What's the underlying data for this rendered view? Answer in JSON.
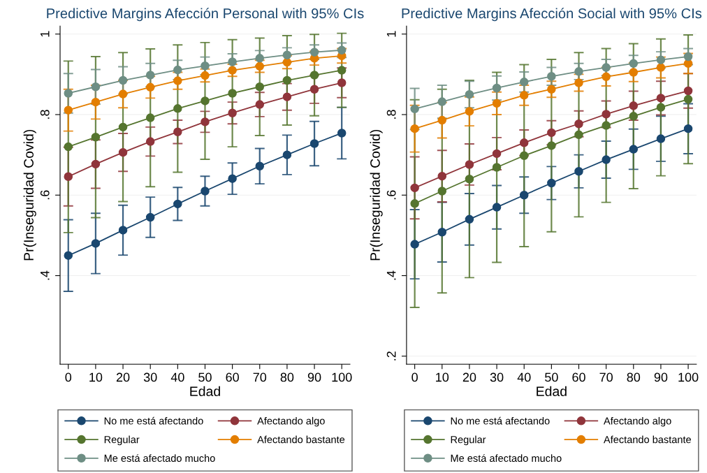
{
  "chart_data": [
    {
      "type": "line",
      "title": "Predictive Margins Afección Personal with 95% CIs",
      "xlabel": "Edad",
      "ylabel": "Pr(Inseguridad Covid)",
      "x": [
        0,
        10,
        20,
        30,
        40,
        50,
        60,
        70,
        80,
        90,
        100
      ],
      "xlim": [
        -3,
        103
      ],
      "xticks": [
        0,
        10,
        20,
        30,
        40,
        50,
        60,
        70,
        80,
        90,
        100
      ],
      "ylim": [
        0.18,
        1.02
      ],
      "yticks": [
        {
          "value": 0.4,
          "label": ".4"
        },
        {
          "value": 0.6,
          "label": ".6"
        },
        {
          "value": 0.8,
          "label": ".8"
        },
        {
          "value": 1,
          "label": "1"
        }
      ],
      "grid": "y",
      "legend": "bottom",
      "marker": "circle",
      "line_style": "solid",
      "series": [
        {
          "name": "No me está afectando",
          "color": "#1a476f",
          "values": [
            0.45,
            0.48,
            0.513,
            0.545,
            0.578,
            0.61,
            0.641,
            0.672,
            0.7,
            0.728,
            0.754
          ],
          "errors": [
            0.089,
            0.075,
            0.062,
            0.05,
            0.041,
            0.037,
            0.039,
            0.044,
            0.049,
            0.055,
            0.064
          ]
        },
        {
          "name": "Afectando algo",
          "color": "#90353b",
          "values": [
            0.646,
            0.677,
            0.706,
            0.733,
            0.757,
            0.782,
            0.804,
            0.825,
            0.844,
            0.863,
            0.879
          ],
          "errors": [
            0.073,
            0.06,
            0.047,
            0.036,
            0.029,
            0.026,
            0.027,
            0.03,
            0.033,
            0.035,
            0.037
          ]
        },
        {
          "name": "Regular",
          "color": "#55752f",
          "values": [
            0.72,
            0.744,
            0.769,
            0.792,
            0.815,
            0.834,
            0.853,
            0.869,
            0.885,
            0.898,
            0.91
          ],
          "errors": [
            0.213,
            0.2,
            0.185,
            0.171,
            0.158,
            0.145,
            0.133,
            0.121,
            0.111,
            0.101,
            0.092
          ]
        },
        {
          "name": "Afectando bastante",
          "color": "#e37e00",
          "values": [
            0.811,
            0.831,
            0.851,
            0.868,
            0.884,
            0.897,
            0.91,
            0.92,
            0.93,
            0.94,
            0.946
          ],
          "errors": [
            0.052,
            0.042,
            0.034,
            0.027,
            0.021,
            0.016,
            0.015,
            0.015,
            0.016,
            0.017,
            0.018
          ]
        },
        {
          "name": "Me está afectado mucho",
          "color": "#6e8e84",
          "values": [
            0.853,
            0.869,
            0.885,
            0.898,
            0.911,
            0.921,
            0.931,
            0.94,
            0.948,
            0.955,
            0.96
          ],
          "errors": [
            0.049,
            0.043,
            0.034,
            0.029,
            0.024,
            0.022,
            0.02,
            0.019,
            0.018,
            0.018,
            0.018
          ]
        }
      ]
    },
    {
      "type": "line",
      "title": "Predictive Margins Afección Social with 95% CIs",
      "xlabel": "Edad",
      "ylabel": "Pr(Inseguridad Covid)",
      "x": [
        0,
        10,
        20,
        30,
        40,
        50,
        60,
        70,
        80,
        90,
        100
      ],
      "xlim": [
        -3,
        103
      ],
      "xticks": [
        0,
        10,
        20,
        30,
        40,
        50,
        60,
        70,
        80,
        90,
        100
      ],
      "ylim": [
        0.18,
        1.02
      ],
      "yticks": [
        {
          "value": 0.2,
          "label": ".2"
        },
        {
          "value": 0.4,
          "label": ".4"
        },
        {
          "value": 0.6,
          "label": ".6"
        },
        {
          "value": 0.8,
          "label": ".8"
        },
        {
          "value": 1,
          "label": "1"
        }
      ],
      "grid": "y",
      "legend": "bottom",
      "marker": "circle",
      "line_style": "solid",
      "series": [
        {
          "name": "No me está afectando",
          "color": "#1a476f",
          "values": [
            0.478,
            0.508,
            0.54,
            0.57,
            0.6,
            0.63,
            0.659,
            0.688,
            0.714,
            0.74,
            0.765
          ],
          "errors": [
            0.086,
            0.074,
            0.064,
            0.054,
            0.045,
            0.041,
            0.041,
            0.046,
            0.05,
            0.056,
            0.062
          ]
        },
        {
          "name": "Afectando algo",
          "color": "#90353b",
          "values": [
            0.618,
            0.647,
            0.676,
            0.703,
            0.73,
            0.755,
            0.777,
            0.801,
            0.822,
            0.841,
            0.859
          ],
          "errors": [
            0.077,
            0.064,
            0.051,
            0.04,
            0.032,
            0.03,
            0.032,
            0.033,
            0.036,
            0.042,
            0.043
          ]
        },
        {
          "name": "Regular",
          "color": "#55752f",
          "values": [
            0.579,
            0.61,
            0.64,
            0.669,
            0.698,
            0.723,
            0.75,
            0.773,
            0.796,
            0.818,
            0.838
          ],
          "errors": [
            0.258,
            0.253,
            0.245,
            0.236,
            0.226,
            0.214,
            0.204,
            0.191,
            0.18,
            0.17,
            0.16
          ]
        },
        {
          "name": "Afectando bastante",
          "color": "#e37e00",
          "values": [
            0.765,
            0.786,
            0.808,
            0.828,
            0.848,
            0.863,
            0.879,
            0.894,
            0.905,
            0.917,
            0.927
          ],
          "errors": [
            0.058,
            0.044,
            0.036,
            0.028,
            0.025,
            0.02,
            0.021,
            0.023,
            0.023,
            0.026,
            0.025
          ]
        },
        {
          "name": "Me está afectado mucho",
          "color": "#6e8e84",
          "values": [
            0.814,
            0.832,
            0.85,
            0.866,
            0.881,
            0.895,
            0.907,
            0.917,
            0.927,
            0.936,
            0.944
          ],
          "errors": [
            0.051,
            0.041,
            0.033,
            0.03,
            0.025,
            0.022,
            0.02,
            0.02,
            0.02,
            0.02,
            0.02
          ]
        }
      ]
    }
  ]
}
